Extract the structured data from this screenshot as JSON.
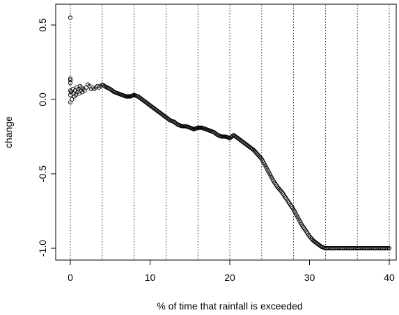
{
  "chart_data": {
    "type": "scatter",
    "title": "",
    "xlabel": "% of time that rainfall is exceeded",
    "ylabel": "change",
    "xlim": [
      0,
      40
    ],
    "ylim": [
      -1.0,
      0.55
    ],
    "x_ticks": [
      0,
      10,
      20,
      30,
      40
    ],
    "x_tick_labels": [
      "0",
      "10",
      "20",
      "30",
      "40"
    ],
    "y_ticks": [
      0.5,
      0.0,
      -0.5,
      -1.0
    ],
    "y_tick_labels": [
      "0.5",
      "0.0",
      "-0.5",
      "-1.0"
    ],
    "vertical_gridlines_x": [
      0,
      4,
      8,
      12,
      16,
      20,
      24,
      28,
      32,
      36,
      40
    ],
    "grid": "vertical dotted lines",
    "marker": "open circle",
    "series": [
      {
        "points": [
          [
            0.0,
            0.55
          ],
          [
            0.0,
            0.14
          ],
          [
            0.0,
            0.13
          ],
          [
            0.0,
            0.11
          ],
          [
            0.0,
            0.06
          ],
          [
            0.0,
            0.03
          ],
          [
            0.0,
            -0.02
          ],
          [
            0.1,
            0.05
          ],
          [
            0.2,
            0.0
          ],
          [
            0.3,
            0.07
          ],
          [
            0.4,
            0.04
          ],
          [
            0.5,
            0.02
          ],
          [
            0.6,
            0.06
          ],
          [
            0.7,
            0.03
          ],
          [
            0.8,
            0.08
          ],
          [
            0.9,
            0.05
          ],
          [
            1.0,
            0.07
          ],
          [
            1.1,
            0.04
          ],
          [
            1.2,
            0.09
          ],
          [
            1.3,
            0.06
          ],
          [
            1.4,
            0.08
          ],
          [
            1.5,
            0.05
          ],
          [
            1.6,
            0.07
          ],
          [
            1.8,
            0.06
          ],
          [
            2.0,
            0.08
          ],
          [
            2.2,
            0.1
          ],
          [
            2.4,
            0.09
          ],
          [
            2.6,
            0.07
          ],
          [
            2.8,
            0.08
          ],
          [
            3.0,
            0.07
          ],
          [
            3.2,
            0.08
          ],
          [
            3.4,
            0.09
          ],
          [
            3.6,
            0.08
          ],
          [
            3.8,
            0.09
          ],
          [
            4.0,
            0.1
          ],
          [
            4.3,
            0.09
          ],
          [
            4.6,
            0.08
          ],
          [
            5.0,
            0.07
          ],
          [
            5.5,
            0.05
          ],
          [
            6.0,
            0.04
          ],
          [
            6.5,
            0.03
          ],
          [
            7.0,
            0.02
          ],
          [
            7.5,
            0.02
          ],
          [
            8.0,
            0.03
          ],
          [
            8.5,
            0.02
          ],
          [
            9.0,
            0.0
          ],
          [
            9.5,
            -0.02
          ],
          [
            10.0,
            -0.04
          ],
          [
            10.5,
            -0.06
          ],
          [
            11.0,
            -0.08
          ],
          [
            11.5,
            -0.1
          ],
          [
            12.0,
            -0.12
          ],
          [
            12.5,
            -0.14
          ],
          [
            13.0,
            -0.15
          ],
          [
            13.5,
            -0.17
          ],
          [
            14.0,
            -0.18
          ],
          [
            14.5,
            -0.18
          ],
          [
            15.0,
            -0.19
          ],
          [
            15.5,
            -0.2
          ],
          [
            16.0,
            -0.19
          ],
          [
            16.5,
            -0.19
          ],
          [
            17.0,
            -0.2
          ],
          [
            17.5,
            -0.21
          ],
          [
            18.0,
            -0.22
          ],
          [
            18.5,
            -0.24
          ],
          [
            19.0,
            -0.25
          ],
          [
            19.5,
            -0.25
          ],
          [
            20.0,
            -0.26
          ],
          [
            20.5,
            -0.24
          ],
          [
            21.0,
            -0.26
          ],
          [
            21.5,
            -0.28
          ],
          [
            22.0,
            -0.3
          ],
          [
            22.5,
            -0.32
          ],
          [
            23.0,
            -0.34
          ],
          [
            23.5,
            -0.37
          ],
          [
            24.0,
            -0.4
          ],
          [
            24.5,
            -0.45
          ],
          [
            25.0,
            -0.5
          ],
          [
            25.5,
            -0.55
          ],
          [
            26.0,
            -0.59
          ],
          [
            26.5,
            -0.62
          ],
          [
            27.0,
            -0.66
          ],
          [
            27.5,
            -0.7
          ],
          [
            28.0,
            -0.74
          ],
          [
            28.5,
            -0.79
          ],
          [
            29.0,
            -0.84
          ],
          [
            29.5,
            -0.88
          ],
          [
            30.0,
            -0.92
          ],
          [
            30.5,
            -0.95
          ],
          [
            31.0,
            -0.97
          ],
          [
            31.5,
            -0.99
          ],
          [
            32.0,
            -1.0
          ],
          [
            33.0,
            -1.0
          ],
          [
            34.0,
            -1.0
          ],
          [
            35.0,
            -1.0
          ],
          [
            36.0,
            -1.0
          ],
          [
            37.0,
            -1.0
          ],
          [
            38.0,
            -1.0
          ],
          [
            39.0,
            -1.0
          ],
          [
            40.0,
            -1.0
          ]
        ]
      }
    ]
  }
}
